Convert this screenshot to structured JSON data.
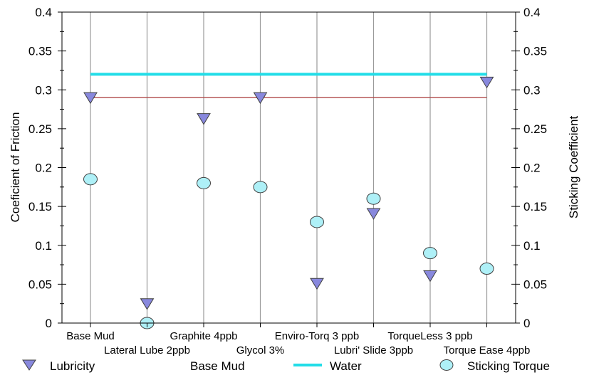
{
  "chart_data": {
    "type": "scatter",
    "title": "",
    "ylabel": "Coeficient of Friction",
    "y2label": "Sticking Coefficient",
    "ylim": [
      0,
      0.4
    ],
    "y2lim": [
      0,
      0.4
    ],
    "yticks": [
      "0",
      "0.05",
      "0.1",
      "0.15",
      "0.2",
      "0.25",
      "0.3",
      "0.35",
      "0.4"
    ],
    "y2ticks": [
      "0",
      "0.05",
      "0.1",
      "0.15",
      "0.2",
      "0.25",
      "0.3",
      "0.35",
      "0.4"
    ],
    "categories": [
      "Base Mud",
      "Lateral Lube 2ppb",
      "Graphite 4ppb",
      "Glycol 3%",
      "Enviro-Torq 3 ppb",
      "Lubri' Slide 3ppb",
      "TorqueLess 3 ppb",
      "Torque Ease 4ppb"
    ],
    "category_labels": [
      {
        "text": "Base Mud",
        "row": 1
      },
      {
        "text": "Lateral Lube 2ppb",
        "row": 2
      },
      {
        "text": "Graphite 4ppb",
        "row": 1
      },
      {
        "text": "Glycol 3%",
        "row": 2
      },
      {
        "text": "Enviro-Torq 3 ppb",
        "row": 1
      },
      {
        "text": "Lubri' Slide 3ppb",
        "row": 2
      },
      {
        "text": "TorqueLess 3 ppb",
        "row": 1
      },
      {
        "text": "Torque Ease 4ppb",
        "row": 2
      }
    ],
    "grid": true,
    "series": [
      {
        "name": "Lubricity",
        "marker": "triangle-down",
        "color": "#8888dd",
        "values": [
          0.29,
          0.025,
          0.263,
          0.29,
          0.051,
          0.141,
          0.061,
          0.31
        ]
      },
      {
        "name": "Sticking Torque",
        "marker": "circle",
        "color": "#aef0f7",
        "values": [
          0.185,
          0.0,
          0.18,
          0.175,
          0.13,
          0.16,
          0.09,
          0.07
        ]
      }
    ],
    "reference_lines": [
      {
        "name": "Base Mud",
        "value": 0.29,
        "color": "#b04a4a"
      },
      {
        "name": "Water",
        "value": 0.32,
        "color": "#22dde8"
      }
    ]
  },
  "legend": [
    {
      "label": "Lubricity",
      "icon": "triangle-down-icon"
    },
    {
      "label": "Base Mud",
      "icon": "none"
    },
    {
      "label": "Water",
      "icon": "line-icon"
    },
    {
      "label": "Sticking Torque",
      "icon": "circle-icon"
    }
  ]
}
